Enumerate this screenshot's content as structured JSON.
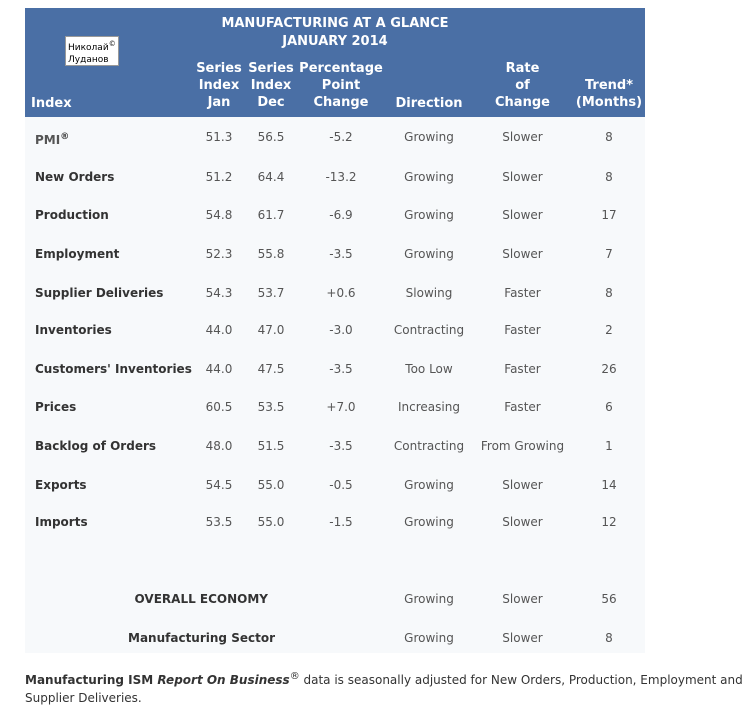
{
  "header": {
    "title_line1": "MANUFACTURING AT A GLANCE",
    "title_line2": "JANUARY 2014",
    "watermark_line1": "Николай",
    "watermark_symbol": "©",
    "watermark_line2": "Луданов"
  },
  "columns": {
    "index": "Index",
    "jan": [
      "Series",
      "Index",
      "Jan"
    ],
    "dec": [
      "Series",
      "Index",
      "Dec"
    ],
    "change": [
      "Percentage",
      "Point",
      "Change"
    ],
    "direction": "Direction",
    "rate": [
      "Rate",
      "of",
      "Change"
    ],
    "trend": [
      "Trend*",
      "(Months)"
    ]
  },
  "rows": [
    {
      "name": "PMI",
      "sup": "®",
      "jan": "51.3",
      "dec": "56.5",
      "change": "-5.2",
      "direction": "Growing",
      "rate": "Slower",
      "trend": "8"
    },
    {
      "name": "New Orders",
      "jan": "51.2",
      "dec": "64.4",
      "change": "-13.2",
      "direction": "Growing",
      "rate": "Slower",
      "trend": "8"
    },
    {
      "name": "Production",
      "jan": "54.8",
      "dec": "61.7",
      "change": "-6.9",
      "direction": "Growing",
      "rate": "Slower",
      "trend": "17"
    },
    {
      "name": "Employment",
      "jan": "52.3",
      "dec": "55.8",
      "change": "-3.5",
      "direction": "Growing",
      "rate": "Slower",
      "trend": "7"
    },
    {
      "name": "Supplier Deliveries",
      "jan": "54.3",
      "dec": "53.7",
      "change": "+0.6",
      "direction": "Slowing",
      "rate": "Faster",
      "trend": "8"
    },
    {
      "name": "Inventories",
      "jan": "44.0",
      "dec": "47.0",
      "change": "-3.0",
      "direction": "Contracting",
      "rate": "Faster",
      "trend": "2"
    },
    {
      "name": "Customers' Inventories",
      "jan": "44.0",
      "dec": "47.5",
      "change": "-3.5",
      "direction": "Too Low",
      "rate": "Faster",
      "trend": "26"
    },
    {
      "name": "Prices",
      "jan": "60.5",
      "dec": "53.5",
      "change": "+7.0",
      "direction": "Increasing",
      "rate": "Faster",
      "trend": "6"
    },
    {
      "name": "Backlog of Orders",
      "jan": "48.0",
      "dec": "51.5",
      "change": "-3.5",
      "direction": "Contracting",
      "rate": "From Growing",
      "trend": "1"
    },
    {
      "name": "Exports",
      "jan": "54.5",
      "dec": "55.0",
      "change": "-0.5",
      "direction": "Growing",
      "rate": "Slower",
      "trend": "14"
    },
    {
      "name": "Imports",
      "jan": "53.5",
      "dec": "55.0",
      "change": "-1.5",
      "direction": "Growing",
      "rate": "Slower",
      "trend": "12"
    }
  ],
  "summary": [
    {
      "name": "OVERALL ECONOMY",
      "direction": "Growing",
      "rate": "Slower",
      "trend": "56"
    },
    {
      "name": "Manufacturing Sector",
      "direction": "Growing",
      "rate": "Slower",
      "trend": "8"
    }
  ],
  "footnote": {
    "part1": "Manufacturing ISM ",
    "part2": "Report On Business",
    "sup": "®",
    "part3": " data is seasonally adjusted for New Orders, Production, Employment and Supplier Deliveries."
  }
}
